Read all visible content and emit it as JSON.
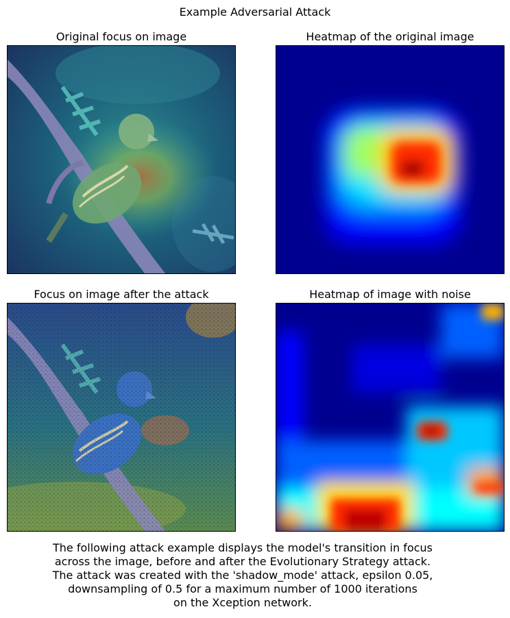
{
  "figure": {
    "suptitle": "Example Adversarial Attack",
    "panels": [
      {
        "title": "Original focus on image"
      },
      {
        "title": "Heatmap of the original image"
      },
      {
        "title": "Focus on image after the attack"
      },
      {
        "title": "Heatmap of image with noise"
      }
    ],
    "caption_lines": [
      "The following attack example displays the model's transition in focus",
      "across the image, before and after the Evolutionary Strategy attack.",
      "The attack was created with the 'shadow_mode' attack, epsilon 0.05,",
      "downsampling of 0.5 for a maximum number of 1000 iterations",
      "on the Xception network."
    ]
  },
  "colors": {
    "jet_low": "#00008f",
    "jet_blue": "#0000ff",
    "jet_cyan": "#00ffff",
    "jet_yellow": "#ffff00",
    "jet_red": "#ff0000",
    "jet_high": "#800000",
    "bird_blue": "#3a6fbf",
    "branch": "#8a86b8"
  }
}
